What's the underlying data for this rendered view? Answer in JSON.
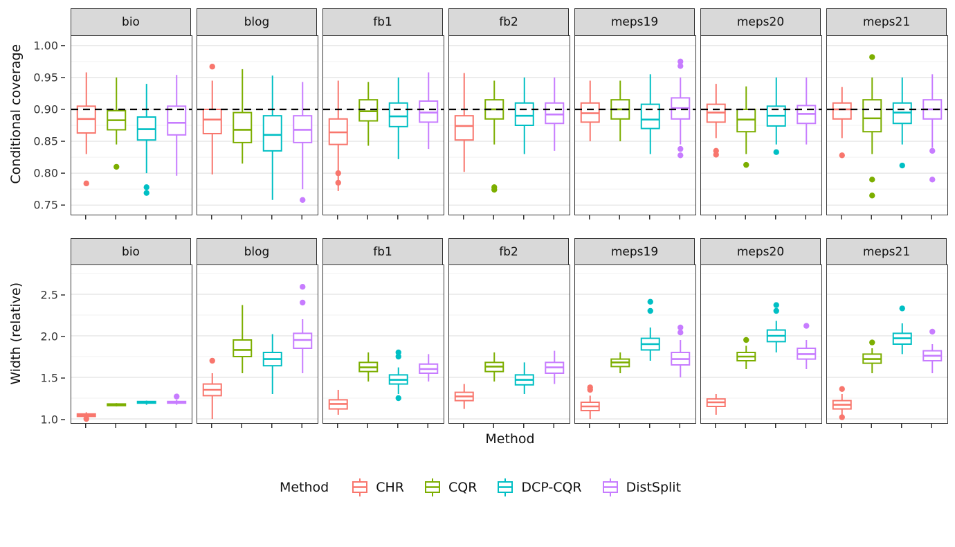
{
  "chart_data": {
    "type": "boxplot",
    "title": "",
    "facets": [
      "bio",
      "blog",
      "fb1",
      "fb2",
      "meps19",
      "meps20",
      "meps21"
    ],
    "methods": [
      "CHR",
      "CQR",
      "DCP-CQR",
      "DistSplit"
    ],
    "colors": {
      "CHR": "#F8766D",
      "CQR": "#7CAE00",
      "DCP-CQR": "#00BFC4",
      "DistSplit": "#C77CFF"
    },
    "xlabel": "Method",
    "legend": {
      "title": "Method",
      "entries": [
        "CHR",
        "CQR",
        "DCP-CQR",
        "DistSplit"
      ],
      "position": "bottom"
    },
    "grid": "on",
    "rows": [
      {
        "ylabel": "Conditional coverage",
        "ylim": [
          0.735,
          1.015
        ],
        "yticks": [
          0.75,
          0.8,
          0.85,
          0.9,
          0.95,
          1.0
        ],
        "ytick_labels": [
          "0.75",
          "0.80",
          "0.85",
          "0.90",
          "0.95",
          "1.00"
        ],
        "reference_line": 0.9,
        "panels": {
          "bio": [
            {
              "whisker_low": 0.83,
              "q1": 0.863,
              "median": 0.885,
              "q3": 0.905,
              "whisker_high": 0.958,
              "outliers": [
                0.784
              ]
            },
            {
              "whisker_low": 0.845,
              "q1": 0.868,
              "median": 0.883,
              "q3": 0.898,
              "whisker_high": 0.95,
              "outliers": [
                0.81
              ]
            },
            {
              "whisker_low": 0.8,
              "q1": 0.852,
              "median": 0.869,
              "q3": 0.888,
              "whisker_high": 0.94,
              "outliers": [
                0.778,
                0.769
              ]
            },
            {
              "whisker_low": 0.796,
              "q1": 0.86,
              "median": 0.879,
              "q3": 0.905,
              "whisker_high": 0.954,
              "outliers": []
            }
          ],
          "blog": [
            {
              "whisker_low": 0.798,
              "q1": 0.862,
              "median": 0.884,
              "q3": 0.9,
              "whisker_high": 0.945,
              "outliers": [
                0.967
              ]
            },
            {
              "whisker_low": 0.815,
              "q1": 0.848,
              "median": 0.868,
              "q3": 0.895,
              "whisker_high": 0.963,
              "outliers": []
            },
            {
              "whisker_low": 0.758,
              "q1": 0.835,
              "median": 0.86,
              "q3": 0.89,
              "whisker_high": 0.953,
              "outliers": []
            },
            {
              "whisker_low": 0.775,
              "q1": 0.848,
              "median": 0.868,
              "q3": 0.89,
              "whisker_high": 0.943,
              "outliers": [
                0.758
              ]
            }
          ],
          "fb1": [
            {
              "whisker_low": 0.772,
              "q1": 0.845,
              "median": 0.864,
              "q3": 0.885,
              "whisker_high": 0.945,
              "outliers": [
                0.8,
                0.785
              ]
            },
            {
              "whisker_low": 0.843,
              "q1": 0.882,
              "median": 0.897,
              "q3": 0.915,
              "whisker_high": 0.943,
              "outliers": []
            },
            {
              "whisker_low": 0.822,
              "q1": 0.873,
              "median": 0.889,
              "q3": 0.91,
              "whisker_high": 0.95,
              "outliers": []
            },
            {
              "whisker_low": 0.838,
              "q1": 0.88,
              "median": 0.895,
              "q3": 0.913,
              "whisker_high": 0.958,
              "outliers": []
            }
          ],
          "fb2": [
            {
              "whisker_low": 0.802,
              "q1": 0.852,
              "median": 0.874,
              "q3": 0.89,
              "whisker_high": 0.957,
              "outliers": []
            },
            {
              "whisker_low": 0.845,
              "q1": 0.885,
              "median": 0.9,
              "q3": 0.915,
              "whisker_high": 0.945,
              "outliers": [
                0.778,
                0.774
              ]
            },
            {
              "whisker_low": 0.83,
              "q1": 0.875,
              "median": 0.89,
              "q3": 0.91,
              "whisker_high": 0.95,
              "outliers": []
            },
            {
              "whisker_low": 0.835,
              "q1": 0.878,
              "median": 0.892,
              "q3": 0.91,
              "whisker_high": 0.95,
              "outliers": []
            }
          ],
          "meps19": [
            {
              "whisker_low": 0.85,
              "q1": 0.88,
              "median": 0.894,
              "q3": 0.91,
              "whisker_high": 0.945,
              "outliers": []
            },
            {
              "whisker_low": 0.85,
              "q1": 0.885,
              "median": 0.9,
              "q3": 0.915,
              "whisker_high": 0.945,
              "outliers": []
            },
            {
              "whisker_low": 0.83,
              "q1": 0.87,
              "median": 0.884,
              "q3": 0.908,
              "whisker_high": 0.955,
              "outliers": []
            },
            {
              "whisker_low": 0.845,
              "q1": 0.885,
              "median": 0.902,
              "q3": 0.918,
              "whisker_high": 0.95,
              "outliers": [
                0.975,
                0.968,
                0.838,
                0.828
              ]
            }
          ],
          "meps20": [
            {
              "whisker_low": 0.855,
              "q1": 0.88,
              "median": 0.895,
              "q3": 0.908,
              "whisker_high": 0.94,
              "outliers": [
                0.835,
                0.829
              ]
            },
            {
              "whisker_low": 0.83,
              "q1": 0.865,
              "median": 0.884,
              "q3": 0.9,
              "whisker_high": 0.936,
              "outliers": [
                0.813
              ]
            },
            {
              "whisker_low": 0.845,
              "q1": 0.874,
              "median": 0.89,
              "q3": 0.905,
              "whisker_high": 0.95,
              "outliers": [
                0.833
              ]
            },
            {
              "whisker_low": 0.845,
              "q1": 0.878,
              "median": 0.893,
              "q3": 0.906,
              "whisker_high": 0.95,
              "outliers": []
            }
          ],
          "meps21": [
            {
              "whisker_low": 0.855,
              "q1": 0.885,
              "median": 0.9,
              "q3": 0.91,
              "whisker_high": 0.935,
              "outliers": [
                0.828
              ]
            },
            {
              "whisker_low": 0.83,
              "q1": 0.865,
              "median": 0.886,
              "q3": 0.915,
              "whisker_high": 0.95,
              "outliers": [
                0.982,
                0.79,
                0.765
              ]
            },
            {
              "whisker_low": 0.845,
              "q1": 0.878,
              "median": 0.895,
              "q3": 0.91,
              "whisker_high": 0.95,
              "outliers": [
                0.812
              ]
            },
            {
              "whisker_low": 0.84,
              "q1": 0.885,
              "median": 0.9,
              "q3": 0.915,
              "whisker_high": 0.955,
              "outliers": [
                0.835,
                0.79
              ]
            }
          ]
        }
      },
      {
        "ylabel": "Width (relative)",
        "ylim": [
          0.95,
          2.85
        ],
        "yticks": [
          1.0,
          1.5,
          2.0,
          2.5
        ],
        "ytick_labels": [
          "1.0",
          "1.5",
          "2.0",
          "2.5"
        ],
        "reference_line": null,
        "panels": {
          "bio": [
            {
              "whisker_low": 1.0,
              "q1": 1.03,
              "median": 1.045,
              "q3": 1.06,
              "whisker_high": 1.08,
              "outliers": [
                1.0
              ]
            },
            {
              "whisker_low": 1.15,
              "q1": 1.16,
              "median": 1.17,
              "q3": 1.18,
              "whisker_high": 1.19,
              "outliers": []
            },
            {
              "whisker_low": 1.17,
              "q1": 1.19,
              "median": 1.2,
              "q3": 1.21,
              "whisker_high": 1.22,
              "outliers": []
            },
            {
              "whisker_low": 1.17,
              "q1": 1.19,
              "median": 1.2,
              "q3": 1.21,
              "whisker_high": 1.23,
              "outliers": [
                1.27
              ]
            }
          ],
          "blog": [
            {
              "whisker_low": 1.0,
              "q1": 1.28,
              "median": 1.35,
              "q3": 1.42,
              "whisker_high": 1.55,
              "outliers": [
                1.7
              ]
            },
            {
              "whisker_low": 1.55,
              "q1": 1.75,
              "median": 1.83,
              "q3": 1.95,
              "whisker_high": 2.37,
              "outliers": []
            },
            {
              "whisker_low": 1.3,
              "q1": 1.64,
              "median": 1.72,
              "q3": 1.8,
              "whisker_high": 2.02,
              "outliers": []
            },
            {
              "whisker_low": 1.55,
              "q1": 1.85,
              "median": 1.95,
              "q3": 2.03,
              "whisker_high": 2.2,
              "outliers": [
                2.59,
                2.4
              ]
            }
          ],
          "fb1": [
            {
              "whisker_low": 1.05,
              "q1": 1.12,
              "median": 1.18,
              "q3": 1.23,
              "whisker_high": 1.35,
              "outliers": []
            },
            {
              "whisker_low": 1.45,
              "q1": 1.57,
              "median": 1.62,
              "q3": 1.68,
              "whisker_high": 1.8,
              "outliers": []
            },
            {
              "whisker_low": 1.3,
              "q1": 1.42,
              "median": 1.47,
              "q3": 1.53,
              "whisker_high": 1.62,
              "outliers": [
                1.8,
                1.75,
                1.25
              ]
            },
            {
              "whisker_low": 1.45,
              "q1": 1.55,
              "median": 1.6,
              "q3": 1.66,
              "whisker_high": 1.78,
              "outliers": []
            }
          ],
          "fb2": [
            {
              "whisker_low": 1.12,
              "q1": 1.22,
              "median": 1.27,
              "q3": 1.32,
              "whisker_high": 1.42,
              "outliers": []
            },
            {
              "whisker_low": 1.45,
              "q1": 1.57,
              "median": 1.63,
              "q3": 1.68,
              "whisker_high": 1.8,
              "outliers": []
            },
            {
              "whisker_low": 1.3,
              "q1": 1.41,
              "median": 1.47,
              "q3": 1.53,
              "whisker_high": 1.68,
              "outliers": []
            },
            {
              "whisker_low": 1.42,
              "q1": 1.55,
              "median": 1.62,
              "q3": 1.68,
              "whisker_high": 1.82,
              "outliers": []
            }
          ],
          "meps19": [
            {
              "whisker_low": 1.0,
              "q1": 1.1,
              "median": 1.15,
              "q3": 1.2,
              "whisker_high": 1.28,
              "outliers": [
                1.38,
                1.35
              ]
            },
            {
              "whisker_low": 1.55,
              "q1": 1.63,
              "median": 1.68,
              "q3": 1.72,
              "whisker_high": 1.8,
              "outliers": []
            },
            {
              "whisker_low": 1.7,
              "q1": 1.83,
              "median": 1.9,
              "q3": 1.97,
              "whisker_high": 2.1,
              "outliers": [
                2.41,
                2.3
              ]
            },
            {
              "whisker_low": 1.5,
              "q1": 1.65,
              "median": 1.72,
              "q3": 1.8,
              "whisker_high": 1.95,
              "outliers": [
                2.1,
                2.04
              ]
            }
          ],
          "meps20": [
            {
              "whisker_low": 1.05,
              "q1": 1.15,
              "median": 1.2,
              "q3": 1.24,
              "whisker_high": 1.3,
              "outliers": []
            },
            {
              "whisker_low": 1.6,
              "q1": 1.7,
              "median": 1.75,
              "q3": 1.8,
              "whisker_high": 1.88,
              "outliers": [
                1.95
              ]
            },
            {
              "whisker_low": 1.8,
              "q1": 1.93,
              "median": 2.0,
              "q3": 2.07,
              "whisker_high": 2.18,
              "outliers": [
                2.37,
                2.3
              ]
            },
            {
              "whisker_low": 1.6,
              "q1": 1.72,
              "median": 1.78,
              "q3": 1.85,
              "whisker_high": 1.95,
              "outliers": [
                2.12
              ]
            }
          ],
          "meps21": [
            {
              "whisker_low": 1.05,
              "q1": 1.12,
              "median": 1.17,
              "q3": 1.22,
              "whisker_high": 1.3,
              "outliers": [
                1.36,
                1.02
              ]
            },
            {
              "whisker_low": 1.55,
              "q1": 1.67,
              "median": 1.72,
              "q3": 1.78,
              "whisker_high": 1.85,
              "outliers": [
                1.92
              ]
            },
            {
              "whisker_low": 1.78,
              "q1": 1.9,
              "median": 1.97,
              "q3": 2.03,
              "whisker_high": 2.15,
              "outliers": [
                2.33
              ]
            },
            {
              "whisker_low": 1.55,
              "q1": 1.7,
              "median": 1.76,
              "q3": 1.82,
              "whisker_high": 1.9,
              "outliers": [
                2.05
              ]
            }
          ]
        }
      }
    ]
  }
}
